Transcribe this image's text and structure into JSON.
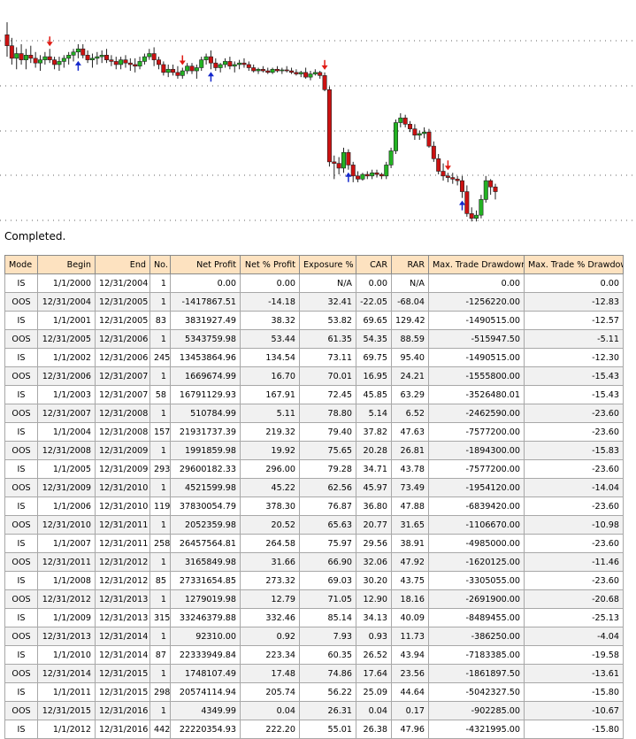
{
  "chart_data": {
    "type": "candlestick",
    "series": [
      {
        "o": 52,
        "h": 60,
        "l": 38,
        "c": 45
      },
      {
        "o": 45,
        "h": 50,
        "l": 33,
        "c": 37
      },
      {
        "o": 37,
        "h": 44,
        "l": 30,
        "c": 40
      },
      {
        "o": 40,
        "h": 46,
        "l": 33,
        "c": 36
      },
      {
        "o": 36,
        "h": 43,
        "l": 30,
        "c": 39
      },
      {
        "o": 39,
        "h": 45,
        "l": 34,
        "c": 37
      },
      {
        "o": 37,
        "h": 41,
        "l": 31,
        "c": 34
      },
      {
        "o": 34,
        "h": 39,
        "l": 29,
        "c": 36
      },
      {
        "o": 36,
        "h": 41,
        "l": 33,
        "c": 38
      },
      {
        "o": 38,
        "h": 43,
        "l": 34,
        "c": 36
      },
      {
        "o": 36,
        "h": 38,
        "l": 30,
        "c": 33
      },
      {
        "o": 33,
        "h": 38,
        "l": 29,
        "c": 35
      },
      {
        "o": 35,
        "h": 39,
        "l": 31,
        "c": 37
      },
      {
        "o": 37,
        "h": 41,
        "l": 33,
        "c": 39
      },
      {
        "o": 39,
        "h": 43,
        "l": 35,
        "c": 41
      },
      {
        "o": 41,
        "h": 46,
        "l": 37,
        "c": 43
      },
      {
        "o": 43,
        "h": 46,
        "l": 37,
        "c": 39
      },
      {
        "o": 39,
        "h": 42,
        "l": 34,
        "c": 36
      },
      {
        "o": 36,
        "h": 40,
        "l": 31,
        "c": 37
      },
      {
        "o": 37,
        "h": 41,
        "l": 33,
        "c": 38
      },
      {
        "o": 38,
        "h": 42,
        "l": 34,
        "c": 39
      },
      {
        "o": 39,
        "h": 43,
        "l": 34,
        "c": 36
      },
      {
        "o": 36,
        "h": 39,
        "l": 32,
        "c": 35
      },
      {
        "o": 35,
        "h": 38,
        "l": 30,
        "c": 33
      },
      {
        "o": 33,
        "h": 38,
        "l": 30,
        "c": 36
      },
      {
        "o": 36,
        "h": 39,
        "l": 31,
        "c": 34
      },
      {
        "o": 34,
        "h": 37,
        "l": 29,
        "c": 33
      },
      {
        "o": 33,
        "h": 37,
        "l": 28,
        "c": 32
      },
      {
        "o": 32,
        "h": 38,
        "l": 30,
        "c": 35
      },
      {
        "o": 35,
        "h": 40,
        "l": 33,
        "c": 38
      },
      {
        "o": 38,
        "h": 43,
        "l": 36,
        "c": 40
      },
      {
        "o": 40,
        "h": 44,
        "l": 32,
        "c": 36
      },
      {
        "o": 36,
        "h": 38,
        "l": 30,
        "c": 33
      },
      {
        "o": 33,
        "h": 35,
        "l": 26,
        "c": 28
      },
      {
        "o": 28,
        "h": 33,
        "l": 25,
        "c": 30
      },
      {
        "o": 30,
        "h": 33,
        "l": 26,
        "c": 28
      },
      {
        "o": 28,
        "h": 32,
        "l": 24,
        "c": 26
      },
      {
        "o": 26,
        "h": 31,
        "l": 24,
        "c": 29
      },
      {
        "o": 29,
        "h": 34,
        "l": 27,
        "c": 32
      },
      {
        "o": 32,
        "h": 34,
        "l": 27,
        "c": 29
      },
      {
        "o": 29,
        "h": 33,
        "l": 24,
        "c": 31
      },
      {
        "o": 31,
        "h": 38,
        "l": 29,
        "c": 36
      },
      {
        "o": 36,
        "h": 40,
        "l": 33,
        "c": 38
      },
      {
        "o": 38,
        "h": 42,
        "l": 30,
        "c": 34
      },
      {
        "o": 34,
        "h": 37,
        "l": 29,
        "c": 31
      },
      {
        "o": 31,
        "h": 34,
        "l": 28,
        "c": 33
      },
      {
        "o": 33,
        "h": 37,
        "l": 31,
        "c": 35
      },
      {
        "o": 35,
        "h": 38,
        "l": 30,
        "c": 32
      },
      {
        "o": 32,
        "h": 35,
        "l": 28,
        "c": 33
      },
      {
        "o": 33,
        "h": 36,
        "l": 30,
        "c": 34
      },
      {
        "o": 34,
        "h": 37,
        "l": 31,
        "c": 33
      },
      {
        "o": 33,
        "h": 35,
        "l": 29,
        "c": 31
      },
      {
        "o": 31,
        "h": 33,
        "l": 28,
        "c": 29
      },
      {
        "o": 29,
        "h": 31,
        "l": 27,
        "c": 30
      },
      {
        "o": 30,
        "h": 32,
        "l": 28,
        "c": 29
      },
      {
        "o": 29,
        "h": 31,
        "l": 27,
        "c": 28
      },
      {
        "o": 28,
        "h": 31,
        "l": 27,
        "c": 30
      },
      {
        "o": 30,
        "h": 32,
        "l": 28,
        "c": 29
      },
      {
        "o": 29,
        "h": 31,
        "l": 27,
        "c": 29.6
      },
      {
        "o": 29.6,
        "h": 32,
        "l": 28,
        "c": 29
      },
      {
        "o": 29,
        "h": 31,
        "l": 27,
        "c": 28
      },
      {
        "o": 28,
        "h": 30,
        "l": 26,
        "c": 27
      },
      {
        "o": 27,
        "h": 29,
        "l": 25,
        "c": 28
      },
      {
        "o": 28,
        "h": 31,
        "l": 24,
        "c": 25
      },
      {
        "o": 25,
        "h": 29,
        "l": 23,
        "c": 27
      },
      {
        "o": 27,
        "h": 30,
        "l": 26,
        "c": 28
      },
      {
        "o": 28,
        "h": 29,
        "l": 24,
        "c": 26
      },
      {
        "o": 26,
        "h": 28,
        "l": 16,
        "c": 17
      },
      {
        "o": 17,
        "h": 19,
        "l": -32,
        "c": -29
      },
      {
        "o": -29,
        "h": -25,
        "l": -40,
        "c": -30
      },
      {
        "o": -30,
        "h": -26,
        "l": -37,
        "c": -33
      },
      {
        "o": -33,
        "h": -20,
        "l": -36,
        "c": -23
      },
      {
        "o": -23,
        "h": -21,
        "l": -34,
        "c": -31
      },
      {
        "o": -31,
        "h": -29,
        "l": -42,
        "c": -38
      },
      {
        "o": -38,
        "h": -35,
        "l": -42,
        "c": -40
      },
      {
        "o": -40,
        "h": -36,
        "l": -41,
        "c": -37
      },
      {
        "o": -37,
        "h": -35,
        "l": -40,
        "c": -38
      },
      {
        "o": -38,
        "h": -34,
        "l": -40,
        "c": -36
      },
      {
        "o": -36,
        "h": -34,
        "l": -39,
        "c": -37
      },
      {
        "o": -37,
        "h": -36,
        "l": -40,
        "c": -38
      },
      {
        "o": -38,
        "h": -29,
        "l": -40,
        "c": -31
      },
      {
        "o": -31,
        "h": -20,
        "l": -33,
        "c": -22
      },
      {
        "o": -22,
        "h": -2,
        "l": -24,
        "c": -4
      },
      {
        "o": -4,
        "h": 2,
        "l": -7,
        "c": -1
      },
      {
        "o": -1,
        "h": 1,
        "l": -7,
        "c": -5
      },
      {
        "o": -5,
        "h": -3,
        "l": -10,
        "c": -8
      },
      {
        "o": -8,
        "h": -5,
        "l": -15,
        "c": -12
      },
      {
        "o": -12,
        "h": -9,
        "l": -15,
        "c": -11
      },
      {
        "o": -11,
        "h": -7,
        "l": -14,
        "c": -10
      },
      {
        "o": -10,
        "h": -8,
        "l": -20,
        "c": -19
      },
      {
        "o": -19,
        "h": -16,
        "l": -29,
        "c": -27
      },
      {
        "o": -27,
        "h": -24,
        "l": -37,
        "c": -35
      },
      {
        "o": -35,
        "h": -30,
        "l": -41,
        "c": -38
      },
      {
        "o": -38,
        "h": -36,
        "l": -42,
        "c": -39
      },
      {
        "o": -39,
        "h": -36,
        "l": -43,
        "c": -40
      },
      {
        "o": -40,
        "h": -38,
        "l": -44,
        "c": -41
      },
      {
        "o": -41,
        "h": -38,
        "l": -52,
        "c": -48
      },
      {
        "o": -48,
        "h": -44,
        "l": -64,
        "c": -62
      },
      {
        "o": -62,
        "h": -58,
        "l": -67,
        "c": -65
      },
      {
        "o": -65,
        "h": -60,
        "l": -67,
        "c": -63
      },
      {
        "o": -63,
        "h": -50,
        "l": -65,
        "c": -53
      },
      {
        "o": -53,
        "h": -38,
        "l": -55,
        "c": -41
      },
      {
        "o": -41,
        "h": -40,
        "l": -50,
        "c": -45
      },
      {
        "o": -45,
        "h": -43,
        "l": -53,
        "c": -48
      }
    ],
    "markers": [
      {
        "i": 9,
        "dir": "down"
      },
      {
        "i": 15,
        "dir": "up"
      },
      {
        "i": 37,
        "dir": "down"
      },
      {
        "i": 43,
        "dir": "up"
      },
      {
        "i": 67,
        "dir": "down"
      },
      {
        "i": 72,
        "dir": "up"
      },
      {
        "i": 93,
        "dir": "down"
      },
      {
        "i": 96,
        "dir": "up"
      }
    ],
    "ylim": [
      -68,
      64
    ],
    "grid": "horizontal-dotted",
    "colors": {
      "up": "#22b322",
      "down": "#cc1111",
      "buy": "#1428cc",
      "sell": "#e01b14",
      "grid": "#606060"
    }
  },
  "status_text": "Completed.",
  "table": {
    "headers": [
      "Mode",
      "Begin",
      "End",
      "No.",
      "Net Profit",
      "Net % Profit",
      "Exposure %",
      "CAR",
      "RAR",
      "Max. Trade Drawdown",
      "Max. Trade % Drawdown"
    ],
    "rows": [
      [
        "IS",
        "1/1/2000",
        "12/31/2004",
        "1",
        "0.00",
        "0.00",
        "N/A",
        "0.00",
        "N/A",
        "0.00",
        "0.00"
      ],
      [
        "OOS",
        "12/31/2004",
        "12/31/2005",
        "1",
        "-1417867.51",
        "-14.18",
        "32.41",
        "-22.05",
        "-68.04",
        "-1256220.00",
        "-12.83"
      ],
      [
        "IS",
        "1/1/2001",
        "12/31/2005",
        "83",
        "3831927.49",
        "38.32",
        "53.82",
        "69.65",
        "129.42",
        "-1490515.00",
        "-12.57"
      ],
      [
        "OOS",
        "12/31/2005",
        "12/31/2006",
        "1",
        "5343759.98",
        "53.44",
        "61.35",
        "54.35",
        "88.59",
        "-515947.50",
        "-5.11"
      ],
      [
        "IS",
        "1/1/2002",
        "12/31/2006",
        "245",
        "13453864.96",
        "134.54",
        "73.11",
        "69.75",
        "95.40",
        "-1490515.00",
        "-12.30"
      ],
      [
        "OOS",
        "12/31/2006",
        "12/31/2007",
        "1",
        "1669674.99",
        "16.70",
        "70.01",
        "16.95",
        "24.21",
        "-1555800.00",
        "-15.43"
      ],
      [
        "IS",
        "1/1/2003",
        "12/31/2007",
        "58",
        "16791129.93",
        "167.91",
        "72.45",
        "45.85",
        "63.29",
        "-3526480.01",
        "-15.43"
      ],
      [
        "OOS",
        "12/31/2007",
        "12/31/2008",
        "1",
        "510784.99",
        "5.11",
        "78.80",
        "5.14",
        "6.52",
        "-2462590.00",
        "-23.60"
      ],
      [
        "IS",
        "1/1/2004",
        "12/31/2008",
        "157",
        "21931737.39",
        "219.32",
        "79.40",
        "37.82",
        "47.63",
        "-7577200.00",
        "-23.60"
      ],
      [
        "OOS",
        "12/31/2008",
        "12/31/2009",
        "1",
        "1991859.98",
        "19.92",
        "75.65",
        "20.28",
        "26.81",
        "-1894300.00",
        "-15.83"
      ],
      [
        "IS",
        "1/1/2005",
        "12/31/2009",
        "293",
        "29600182.33",
        "296.00",
        "79.28",
        "34.71",
        "43.78",
        "-7577200.00",
        "-23.60"
      ],
      [
        "OOS",
        "12/31/2009",
        "12/31/2010",
        "1",
        "4521599.98",
        "45.22",
        "62.56",
        "45.97",
        "73.49",
        "-1954120.00",
        "-14.04"
      ],
      [
        "IS",
        "1/1/2006",
        "12/31/2010",
        "119",
        "37830054.79",
        "378.30",
        "76.87",
        "36.80",
        "47.88",
        "-6839420.00",
        "-23.60"
      ],
      [
        "OOS",
        "12/31/2010",
        "12/31/2011",
        "1",
        "2052359.98",
        "20.52",
        "65.63",
        "20.77",
        "31.65",
        "-1106670.00",
        "-10.98"
      ],
      [
        "IS",
        "1/1/2007",
        "12/31/2011",
        "258",
        "26457564.81",
        "264.58",
        "75.97",
        "29.56",
        "38.91",
        "-4985000.00",
        "-23.60"
      ],
      [
        "OOS",
        "12/31/2011",
        "12/31/2012",
        "1",
        "3165849.98",
        "31.66",
        "66.90",
        "32.06",
        "47.92",
        "-1620125.00",
        "-11.46"
      ],
      [
        "IS",
        "1/1/2008",
        "12/31/2012",
        "85",
        "27331654.85",
        "273.32",
        "69.03",
        "30.20",
        "43.75",
        "-3305055.00",
        "-23.60"
      ],
      [
        "OOS",
        "12/31/2012",
        "12/31/2013",
        "1",
        "1279019.98",
        "12.79",
        "71.05",
        "12.90",
        "18.16",
        "-2691900.00",
        "-20.68"
      ],
      [
        "IS",
        "1/1/2009",
        "12/31/2013",
        "315",
        "33246379.88",
        "332.46",
        "85.14",
        "34.13",
        "40.09",
        "-8489455.00",
        "-25.13"
      ],
      [
        "OOS",
        "12/31/2013",
        "12/31/2014",
        "1",
        "92310.00",
        "0.92",
        "7.93",
        "0.93",
        "11.73",
        "-386250.00",
        "-4.04"
      ],
      [
        "IS",
        "1/1/2010",
        "12/31/2014",
        "87",
        "22333949.84",
        "223.34",
        "60.35",
        "26.52",
        "43.94",
        "-7183385.00",
        "-19.58"
      ],
      [
        "OOS",
        "12/31/2014",
        "12/31/2015",
        "1",
        "1748107.49",
        "17.48",
        "74.86",
        "17.64",
        "23.56",
        "-1861897.50",
        "-13.61"
      ],
      [
        "IS",
        "1/1/2011",
        "12/31/2015",
        "298",
        "20574114.94",
        "205.74",
        "56.22",
        "25.09",
        "44.64",
        "-5042327.50",
        "-15.80"
      ],
      [
        "OOS",
        "12/31/2015",
        "12/31/2016",
        "1",
        "4349.99",
        "0.04",
        "26.31",
        "0.04",
        "0.17",
        "-902285.00",
        "-10.67"
      ],
      [
        "IS",
        "1/1/2012",
        "12/31/2016",
        "442",
        "22220354.93",
        "222.20",
        "55.01",
        "26.38",
        "47.96",
        "-4321995.00",
        "-15.80"
      ]
    ]
  }
}
